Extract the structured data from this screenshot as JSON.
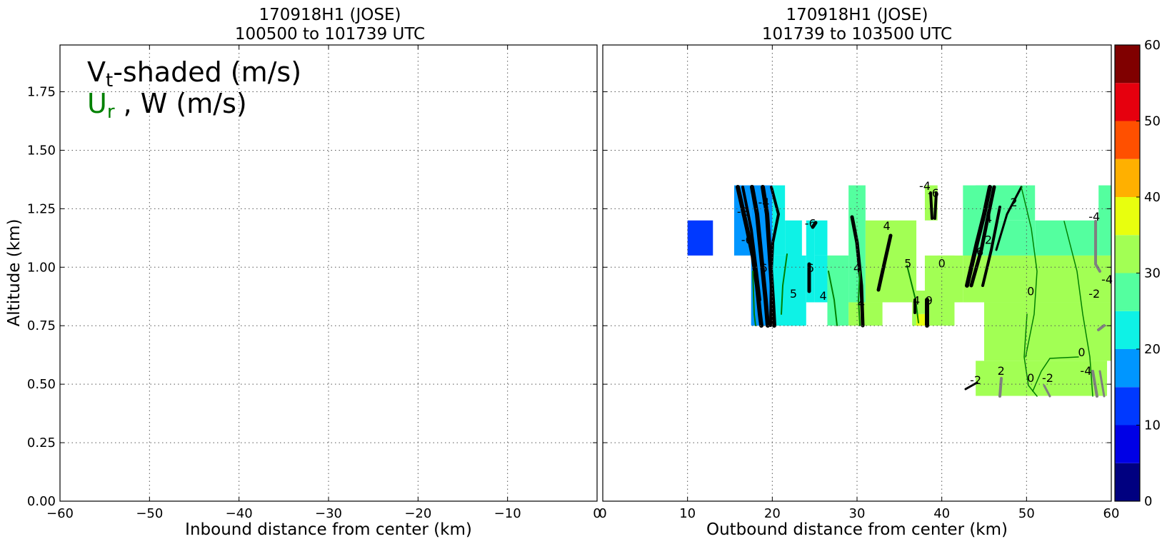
{
  "chart_data": [
    {
      "type": "contour",
      "title_line1": "170918H1 (JOSE)",
      "title_line2": "100500 to 101739 UTC",
      "xlabel": "Inbound distance from center (km)",
      "ylabel": "Altitude (km)",
      "xlim": [
        -60,
        0
      ],
      "ylim": [
        0,
        1.95
      ],
      "x_ticks": [
        "−60",
        "−50",
        "−40",
        "−30",
        "−20",
        "−10",
        "0"
      ],
      "x_tick_values": [
        -60,
        -50,
        -40,
        -30,
        -20,
        -10,
        0
      ],
      "y_ticks": [
        "0.00",
        "0.25",
        "0.50",
        "0.75",
        "1.00",
        "1.25",
        "1.50",
        "1.75"
      ],
      "y_tick_values": [
        0,
        0.25,
        0.5,
        0.75,
        1.0,
        1.25,
        1.5,
        1.75
      ],
      "grid": true,
      "annotation": {
        "vt_main": "V",
        "vt_sub": "t",
        "vt_rest": "-shaded (m/s)",
        "ur_main": "U",
        "ur_sub": "r",
        "ur_rest": " , W (m/s)"
      },
      "vt_cells": []
    },
    {
      "type": "contour",
      "title_line1": "170918H1 (JOSE)",
      "title_line2": "101739 to 103500 UTC",
      "xlabel": "Outbound distance from center (km)",
      "xlim": [
        0,
        60
      ],
      "ylim": [
        0,
        1.95
      ],
      "x_ticks": [
        "0",
        "10",
        "20",
        "30",
        "40",
        "50",
        "60"
      ],
      "x_tick_values": [
        0,
        10,
        20,
        30,
        40,
        50,
        60
      ],
      "y_tick_values": [
        0,
        0.25,
        0.5,
        0.75,
        1.0,
        1.25,
        1.5,
        1.75
      ],
      "grid": true,
      "vt_cells": [
        {
          "x0": 10,
          "x1": 13,
          "y0": 1.05,
          "y1": 1.2,
          "vt": 12
        },
        {
          "x0": 15.5,
          "x1": 17.5,
          "y0": 1.05,
          "y1": 1.35,
          "vt": 18
        },
        {
          "x0": 17.5,
          "x1": 20,
          "y0": 0.75,
          "y1": 1.35,
          "vt": 18
        },
        {
          "x0": 20,
          "x1": 21.5,
          "y0": 1.05,
          "y1": 1.35,
          "vt": 22
        },
        {
          "x0": 20,
          "x1": 24,
          "y0": 0.75,
          "y1": 1.05,
          "vt": 22
        },
        {
          "x0": 21.5,
          "x1": 23.5,
          "y0": 0.75,
          "y1": 1.2,
          "vt": 22
        },
        {
          "x0": 24,
          "x1": 25,
          "y0": 0.85,
          "y1": 1.2,
          "vt": 22
        },
        {
          "x0": 25,
          "x1": 26.5,
          "y0": 0.85,
          "y1": 1.05,
          "vt": 22
        },
        {
          "x0": 25,
          "x1": 26.5,
          "y0": 1.05,
          "y1": 1.2,
          "vt": 22
        },
        {
          "x0": 26.5,
          "x1": 29,
          "y0": 0.75,
          "y1": 1.05,
          "vt": 27
        },
        {
          "x0": 26.5,
          "x1": 29,
          "y0": 0.85,
          "y1": 1.05,
          "vt": 28
        },
        {
          "x0": 29,
          "x1": 31,
          "y0": 0.85,
          "y1": 1.35,
          "vt": 27
        },
        {
          "x0": 31,
          "x1": 37,
          "y0": 0.85,
          "y1": 1.2,
          "vt": 32
        },
        {
          "x0": 29,
          "x1": 33,
          "y0": 0.75,
          "y1": 0.85,
          "vt": 32
        },
        {
          "x0": 36.5,
          "x1": 37.5,
          "y0": 0.75,
          "y1": 0.9,
          "vt": 32
        },
        {
          "x0": 37,
          "x1": 38,
          "y0": 0.75,
          "y1": 0.8,
          "vt": 37
        },
        {
          "x0": 37,
          "x1": 38.5,
          "y0": 0.8,
          "y1": 0.9,
          "vt": 32
        },
        {
          "x0": 38,
          "x1": 41.5,
          "y0": 0.75,
          "y1": 1.05,
          "vt": 32
        },
        {
          "x0": 39.5,
          "x1": 42.5,
          "y0": 0.85,
          "y1": 1.05,
          "vt": 32
        },
        {
          "x0": 38,
          "x1": 39.5,
          "y0": 1.2,
          "y1": 1.35,
          "vt": 32
        },
        {
          "x0": 42.5,
          "x1": 45,
          "y0": 1.05,
          "y1": 1.35,
          "vt": 27
        },
        {
          "x0": 42.5,
          "x1": 51,
          "y0": 1.05,
          "y1": 1.2,
          "vt": 27
        },
        {
          "x0": 44,
          "x1": 51,
          "y0": 1.2,
          "y1": 1.35,
          "vt": 27
        },
        {
          "x0": 51,
          "x1": 58.5,
          "y0": 1.05,
          "y1": 1.2,
          "vt": 27
        },
        {
          "x0": 58.5,
          "x1": 60,
          "y0": 1.05,
          "y1": 1.35,
          "vt": 27
        },
        {
          "x0": 42.5,
          "x1": 60,
          "y0": 0.85,
          "y1": 1.05,
          "vt": 32
        },
        {
          "x0": 45,
          "x1": 60,
          "y0": 0.6,
          "y1": 0.85,
          "vt": 32
        },
        {
          "x0": 44,
          "x1": 45,
          "y0": 0.45,
          "y1": 0.6,
          "vt": 32
        },
        {
          "x0": 45,
          "x1": 59.5,
          "y0": 0.45,
          "y1": 0.6,
          "vt": 32
        }
      ],
      "contour_labels": [
        {
          "x": 16.5,
          "y": 1.22,
          "text": "-2"
        },
        {
          "x": 19,
          "y": 1.26,
          "text": "-4"
        },
        {
          "x": 17,
          "y": 1.1,
          "text": "-6"
        },
        {
          "x": 19,
          "y": 0.98,
          "text": "6"
        },
        {
          "x": 24.5,
          "y": 1.17,
          "text": "-6"
        },
        {
          "x": 24.5,
          "y": 0.98,
          "text": "6"
        },
        {
          "x": 22.5,
          "y": 0.87,
          "text": "5"
        },
        {
          "x": 26,
          "y": 0.86,
          "text": "4"
        },
        {
          "x": 30,
          "y": 0.98,
          "text": "4"
        },
        {
          "x": 30.5,
          "y": 0.83,
          "text": "4"
        },
        {
          "x": 33.5,
          "y": 1.16,
          "text": "4"
        },
        {
          "x": 36,
          "y": 1.0,
          "text": "5"
        },
        {
          "x": 37,
          "y": 0.84,
          "text": "4"
        },
        {
          "x": 38.5,
          "y": 0.84,
          "text": "9"
        },
        {
          "x": 38,
          "y": 1.33,
          "text": "-4"
        },
        {
          "x": 39,
          "y": 1.3,
          "text": "-6"
        },
        {
          "x": 40,
          "y": 1.0,
          "text": "0"
        },
        {
          "x": 44.5,
          "y": 1.05,
          "text": "6"
        },
        {
          "x": 45.5,
          "y": 1.19,
          "text": "4"
        },
        {
          "x": 45.5,
          "y": 1.1,
          "text": "2"
        },
        {
          "x": 48.5,
          "y": 1.26,
          "text": "2"
        },
        {
          "x": 50.5,
          "y": 0.88,
          "text": "0"
        },
        {
          "x": 58,
          "y": 1.2,
          "text": "-4"
        },
        {
          "x": 58,
          "y": 0.87,
          "text": "-2"
        },
        {
          "x": 59.5,
          "y": 0.93,
          "text": "-4"
        },
        {
          "x": 56.5,
          "y": 0.62,
          "text": "0"
        },
        {
          "x": 50.5,
          "y": 0.51,
          "text": "0"
        },
        {
          "x": 52.5,
          "y": 0.51,
          "text": "-2"
        },
        {
          "x": 47,
          "y": 0.54,
          "text": "2"
        },
        {
          "x": 44,
          "y": 0.5,
          "text": "-2"
        },
        {
          "x": 57,
          "y": 0.54,
          "text": "-4"
        }
      ]
    }
  ],
  "colorbar": {
    "ticks": [
      "0",
      "10",
      "20",
      "30",
      "40",
      "50",
      "60"
    ],
    "tick_values": [
      0,
      10,
      20,
      30,
      40,
      50,
      60
    ],
    "levels": [
      0,
      5,
      10,
      15,
      20,
      25,
      30,
      35,
      40,
      45,
      50,
      55,
      60
    ],
    "colors": [
      "#000080",
      "#0000e6",
      "#0039ff",
      "#0096ff",
      "#0ef2e6",
      "#54ff9f",
      "#a2ff54",
      "#e8ff0e",
      "#ffb000",
      "#ff5000",
      "#e6000e",
      "#800000"
    ]
  }
}
